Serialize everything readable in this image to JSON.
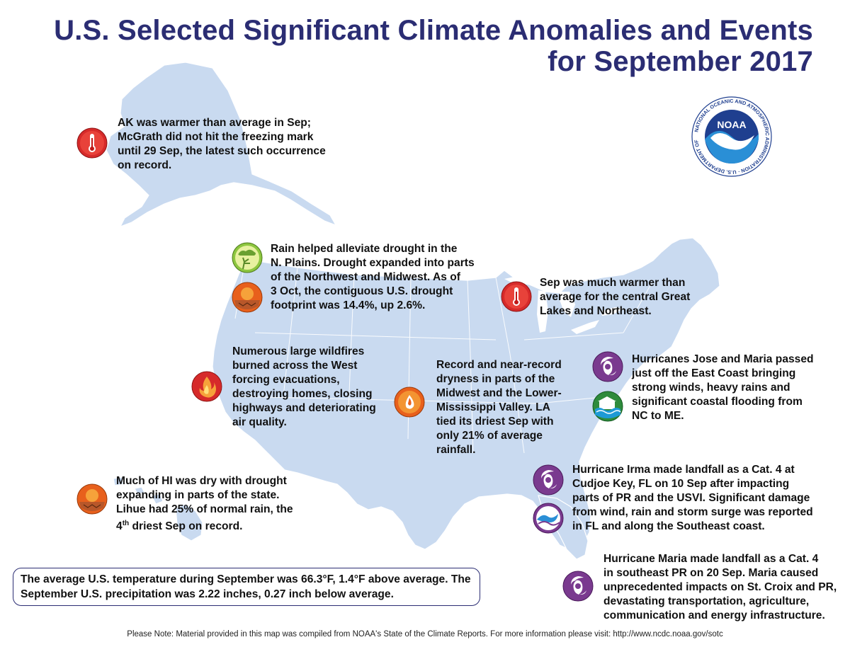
{
  "title": {
    "line1": "U.S. Selected Significant Climate Anomalies and Events",
    "line2": "for September 2017"
  },
  "logo": {
    "text": "NOAA",
    "ring_text": "NATIONAL OCEANIC AND ATMOSPHERIC ADMINISTRATION · U.S. DEPARTMENT OF COMMERCE"
  },
  "colors": {
    "title": "#2b2d73",
    "land": "#c9daf0",
    "warm": "#d62a2a",
    "drought": "#e8601c",
    "hurricane": "#7a3a8f",
    "flood": "#2e8b3c"
  },
  "annotations": {
    "alaska": [
      "AK was warmer than average in Sep;",
      "McGrath did not hit the freezing mark",
      "until 29 Sep, the latest such occurrence",
      "on record."
    ],
    "plains": [
      "Rain helped alleviate drought in the",
      "N. Plains. Drought expanded into parts",
      "of the Northwest and Midwest. As of",
      "3 Oct, the contiguous U.S. drought",
      "footprint was 14.4%, up 2.6%."
    ],
    "greatlakes": [
      "Sep was much warmer than",
      "average for the central Great",
      "Lakes and Northeast."
    ],
    "wildfires": [
      "Numerous large wildfires",
      "burned across the West",
      "forcing evacuations,",
      "destroying homes, closing",
      "highways and deteriorating",
      "air quality."
    ],
    "midwest": [
      "Record and near-record",
      "dryness in parts of the",
      "Midwest and the Lower-",
      "Mississippi Valley. LA",
      "tied its driest Sep with",
      "only 21% of average",
      "rainfall."
    ],
    "eastcoast": [
      "Hurricanes Jose and Maria passed",
      "just off the East Coast bringing",
      "strong winds, heavy rains and",
      "significant coastal flooding from",
      "NC to ME."
    ],
    "hawaii": {
      "lines": [
        "Much of HI was dry with drought",
        "expanding in parts of the state.",
        "Lihue had 25% of normal rain, the"
      ],
      "last_pre": "4",
      "last_sup": "th",
      "last_post": " driest Sep on record."
    },
    "irma": [
      "Hurricane Irma made landfall as a Cat. 4 at",
      "Cudjoe Key, FL on 10 Sep after impacting",
      "parts of PR and the USVI. Significant damage",
      "from wind, rain and storm surge was reported",
      "in FL and along the Southeast coast."
    ],
    "maria": [
      "Hurricane Maria made landfall as a Cat. 4",
      "in southeast PR on 20 Sep. Maria caused",
      "unprecedented impacts on St. Croix and PR,",
      "devastating transportation, agriculture,",
      "communication and energy infrastructure."
    ]
  },
  "summary": [
    "The average U.S. temperature during September was 66.3°F, 1.4°F above average. The",
    "September U.S. precipitation was 2.22 inches, 0.27 inch below average."
  ],
  "footer": "Please Note: Material provided in this map was compiled from NOAA's State of the Climate Reports. For more information please visit: http://www.ncdc.noaa.gov/sotc",
  "icons": [
    "thermometer-warm-icon",
    "rain-drought-relief-icon",
    "drought-cracked-earth-icon",
    "wildfire-flame-icon",
    "dry-drop-icon",
    "hurricane-icon",
    "coastal-flood-icon",
    "storm-surge-icon"
  ]
}
